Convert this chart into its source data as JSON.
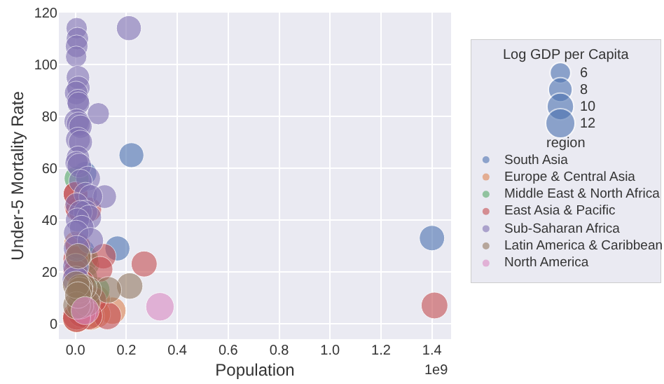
{
  "chart_data": {
    "type": "bubble",
    "xlabel": "Population",
    "ylabel": "Under-5 Mortality Rate",
    "legend_title": "region",
    "annotations": [
      "1e9",
      "Log GDP per Capita"
    ],
    "size_legend": [
      6,
      8,
      10,
      12
    ],
    "xlim": [
      -0.065,
      1.475
    ],
    "xticks": [
      {
        "value": 0,
        "label": "0.0"
      },
      0.2,
      0.4,
      0.6,
      0.8,
      {
        "value": 1,
        "label": "1.0"
      },
      1.2,
      1.4
    ],
    "ylim": [
      -6,
      120
    ],
    "yticks": [
      0,
      20,
      40,
      60,
      80,
      100,
      120
    ],
    "grid": true,
    "legend": "right",
    "marker": "circle",
    "series": [
      {
        "name": "South Asia",
        "color": "#4c72b0",
        "x": [
          1.4,
          0.22,
          0.165,
          0.038,
          0.029
        ],
        "values": [
          33,
          65,
          29,
          58,
          28
        ],
        "sizes": [
          8.8,
          8.5,
          8.6,
          7.6,
          8.2
        ]
      },
      {
        "name": "Europe & Central Asia",
        "color": "#dd8452",
        "x": [
          0.145,
          0.084,
          0.083,
          0.06,
          0.005,
          0.003
        ],
        "values": [
          5,
          9.5,
          3.7,
          2.8,
          2,
          31
        ],
        "sizes": [
          10.3,
          10.2,
          10.9,
          10.6,
          11.1,
          8.3
        ]
      },
      {
        "name": "Middle East & North Africa",
        "color": "#55a868",
        "x": [
          0.084,
          0.044,
          0.04,
          0.037,
          0.005
        ],
        "values": [
          13,
          23,
          25,
          18,
          56
        ],
        "sizes": [
          9.6,
          9.3,
          9.4,
          9.0,
          8.6
        ]
      },
      {
        "name": "East Asia & Pacific",
        "color": "#c44e52",
        "x": [
          1.41,
          0.27,
          0.11,
          0.097,
          0.126,
          0.07,
          0.054,
          0.052,
          0.016,
          0.007,
          0.009,
          0.025,
          0.005,
          0.0009,
          0.0001,
          0.001,
          0.0004,
          0.026,
          0.005,
          0.01
        ],
        "values": [
          7,
          23,
          26,
          21,
          3,
          9,
          44,
          3,
          26,
          45,
          44,
          4,
          3,
          25,
          50,
          50,
          20,
          16,
          2,
          30
        ],
        "sizes": [
          9.8,
          9.3,
          8.9,
          9.0,
          10.6,
          9.8,
          8.6,
          10.6,
          8.4,
          9.0,
          8.2,
          10.9,
          11.0,
          8.8,
          8.2,
          8.5,
          8.5,
          8.4,
          10.8,
          8.9
        ]
      },
      {
        "name": "Sub-Saharan Africa",
        "color": "#8172b3",
        "x": [
          0.21,
          0.005,
          0.008,
          0.005,
          0.003,
          0.01,
          0.012,
          0.003,
          0.01,
          0.012,
          0.09,
          0.005,
          0.012,
          0.02,
          0.01,
          0.02,
          0.01,
          0.005,
          0.015,
          0.05,
          0.02,
          0.04,
          0.115,
          0.06,
          0.005,
          0.04,
          0.02,
          0.054,
          0.008,
          0.025,
          0.003,
          0.059,
          0.004,
          0.002,
          0.001
        ],
        "values": [
          114,
          114,
          110,
          107,
          103,
          95,
          91,
          89,
          86,
          85,
          81,
          78,
          77,
          76,
          71,
          70,
          64,
          62,
          61,
          56,
          55,
          50,
          49,
          49,
          46,
          43,
          43,
          41,
          40,
          37,
          35,
          32,
          29,
          22,
          17
        ],
        "sizes": [
          8.6,
          6.3,
          7.0,
          7.2,
          6.3,
          7.6,
          7.5,
          7.6,
          7.3,
          7.2,
          6.8,
          8.8,
          8.0,
          7.5,
          8.5,
          8.0,
          7.6,
          7.5,
          8.3,
          8.4,
          7.7,
          7.6,
          7.7,
          7.9,
          7.4,
          8.0,
          7.7,
          8.5,
          7.9,
          8.4,
          8.9,
          9.5,
          9.4,
          9.6,
          10.0
        ]
      },
      {
        "name": "Latin America & Caribbean",
        "color": "#937860",
        "x": [
          0.213,
          0.129,
          0.051,
          0.045,
          0.033,
          0.019,
          0.018,
          0.011,
          0.017,
          0.005,
          0.003,
          0.01
        ],
        "values": [
          14.5,
          13,
          13,
          8,
          14,
          7,
          14,
          26,
          13,
          7,
          15,
          11
        ],
        "sizes": [
          9.6,
          9.8,
          9.7,
          10.0,
          9.5,
          10.2,
          9.3,
          9.0,
          9.4,
          10.6,
          10.3,
          9.8
        ]
      },
      {
        "name": "North America",
        "color": "#da8bc3",
        "x": [
          0.332,
          0.038
        ],
        "values": [
          6.5,
          5
        ],
        "sizes": [
          11.1,
          10.8
        ]
      }
    ]
  }
}
